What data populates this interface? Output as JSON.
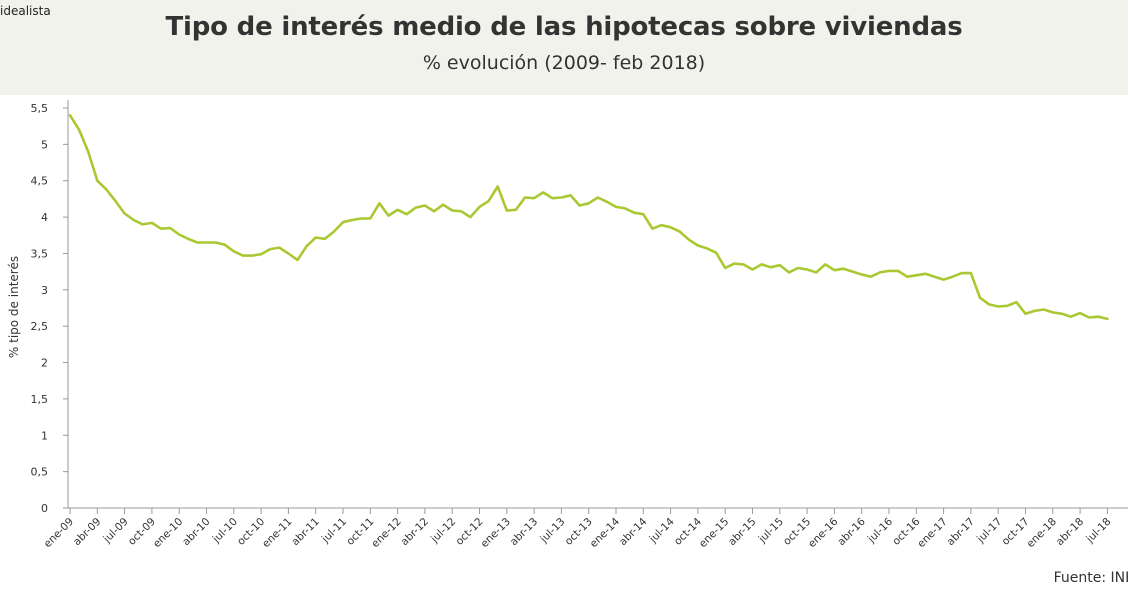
{
  "header": {
    "brand": "idealista",
    "title": "Tipo de interés medio de las hipotecas sobre viviendas",
    "subtitle": "% evolución (2009- feb 2018)"
  },
  "footer": {
    "source": "Fuente: INE"
  },
  "colors": {
    "line": "#a9c832",
    "header_bg": "#f2f2ed",
    "axis": "#999999",
    "text": "#333333"
  },
  "chart_data": {
    "type": "line",
    "title": "Tipo de interés medio de las hipotecas sobre viviendas",
    "subtitle": "% evolución (2009- feb 2018)",
    "xlabel": "",
    "ylabel": "% tipo de interés",
    "ylim": [
      0,
      5.5
    ],
    "yticks": [
      "0",
      "0,5",
      "1",
      "1,5",
      "2",
      "2,5",
      "3",
      "3,5",
      "4",
      "4,5",
      "5",
      "5,5"
    ],
    "grid": false,
    "x_tick_labels": [
      "ene-09",
      "abr-09",
      "jul-09",
      "oct-09",
      "ene-10",
      "abr-10",
      "jul-10",
      "oct-10",
      "ene-11",
      "abr-11",
      "jul-11",
      "oct-11",
      "ene-12",
      "abr-12",
      "jul-12",
      "oct-12",
      "ene-13",
      "abr-13",
      "jul-13",
      "oct-13",
      "ene-14",
      "abr-14",
      "jul-14",
      "oct-14",
      "ene-15",
      "abr-15",
      "jul-15",
      "oct-15",
      "ene-16",
      "abr-16",
      "jul-16",
      "oct-16",
      "ene-17",
      "abr-17",
      "jul-17",
      "oct-17",
      "ene-18",
      "abr-18",
      "jul-18"
    ],
    "series": [
      {
        "name": "",
        "start": "ene-09",
        "values": [
          5.4,
          5.2,
          4.9,
          4.5,
          4.38,
          4.22,
          4.05,
          3.96,
          3.9,
          3.92,
          3.84,
          3.85,
          3.76,
          3.7,
          3.65,
          3.65,
          3.65,
          3.62,
          3.53,
          3.47,
          3.47,
          3.49,
          3.56,
          3.58,
          3.5,
          3.41,
          3.6,
          3.72,
          3.7,
          3.8,
          3.93,
          3.96,
          3.98,
          3.98,
          4.19,
          4.02,
          4.1,
          4.04,
          4.13,
          4.16,
          4.08,
          4.17,
          4.09,
          4.08,
          4.0,
          4.14,
          4.22,
          4.42,
          4.09,
          4.1,
          4.27,
          4.26,
          4.34,
          4.26,
          4.27,
          4.3,
          4.16,
          4.19,
          4.27,
          4.21,
          4.14,
          4.12,
          4.06,
          4.04,
          3.84,
          3.89,
          3.86,
          3.8,
          3.69,
          3.61,
          3.57,
          3.51,
          3.3,
          3.36,
          3.35,
          3.28,
          3.35,
          3.31,
          3.34,
          3.24,
          3.3,
          3.28,
          3.24,
          3.35,
          3.27,
          3.29,
          3.25,
          3.21,
          3.18,
          3.24,
          3.26,
          3.26,
          3.18,
          3.2,
          3.22,
          3.18,
          3.14,
          3.18,
          3.23,
          3.23,
          2.89,
          2.8,
          2.77,
          2.78,
          2.83,
          2.67,
          2.71,
          2.73,
          2.69,
          2.67,
          2.63,
          2.68,
          2.62,
          2.63,
          2.6
        ]
      }
    ]
  }
}
